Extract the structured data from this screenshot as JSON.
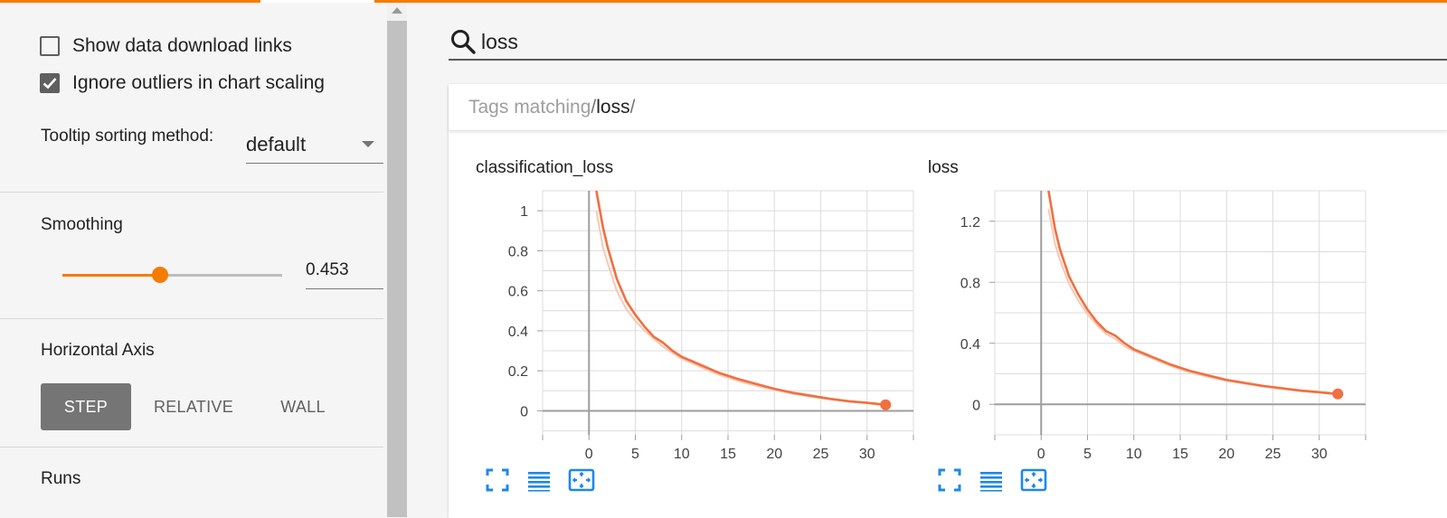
{
  "sidebar": {
    "show_download_links": {
      "label": "Show data download links",
      "checked": false
    },
    "ignore_outliers": {
      "label": "Ignore outliers in chart scaling",
      "checked": true
    },
    "tooltip_sorting": {
      "label": "Tooltip sorting method:",
      "value": "default"
    },
    "smoothing": {
      "title": "Smoothing",
      "value": 0.453,
      "display": "0.453"
    },
    "horizontal_axis": {
      "title": "Horizontal Axis",
      "options": [
        "STEP",
        "RELATIVE",
        "WALL"
      ],
      "selected": "STEP"
    },
    "runs_title": "Runs"
  },
  "search": {
    "query": "loss",
    "icon": "search-icon"
  },
  "tag_group": {
    "prefix": "Tags matching ",
    "slash": "/",
    "query": "loss"
  },
  "colors": {
    "accent": "#f57c00",
    "series": "#f07040",
    "series_raw": "#f9c8b5"
  },
  "chart_data": [
    {
      "type": "line",
      "title": "classification_loss",
      "xlabel": "",
      "ylabel": "",
      "xlim": [
        -5,
        35
      ],
      "ylim": [
        -0.12,
        1.1
      ],
      "xticks": [
        0,
        5,
        10,
        15,
        20,
        25,
        30
      ],
      "yticks": [
        0,
        0.2,
        0.4,
        0.6,
        0.8,
        1
      ],
      "ytick_labels": [
        "0",
        "0.2",
        "0.4",
        "0.6",
        "0.8",
        "1"
      ],
      "grid": true,
      "series": [
        {
          "kind": "smoothed",
          "x": [
            0.8,
            1.5,
            2,
            3,
            4,
            5,
            6,
            7,
            8,
            9,
            10,
            12,
            14,
            16,
            18,
            20,
            22,
            24,
            26,
            28,
            30,
            32
          ],
          "y": [
            1.1,
            0.92,
            0.82,
            0.66,
            0.55,
            0.48,
            0.42,
            0.37,
            0.34,
            0.3,
            0.27,
            0.23,
            0.19,
            0.16,
            0.135,
            0.11,
            0.09,
            0.075,
            0.06,
            0.048,
            0.04,
            0.03
          ]
        },
        {
          "kind": "raw",
          "x": [
            0.8,
            1.5,
            2,
            3,
            4,
            5,
            6,
            7,
            8,
            9,
            10,
            12,
            14,
            16,
            18,
            20,
            22,
            24,
            26,
            28,
            30,
            32
          ],
          "y": [
            1.0,
            0.82,
            0.74,
            0.6,
            0.51,
            0.45,
            0.4,
            0.36,
            0.32,
            0.29,
            0.26,
            0.22,
            0.18,
            0.15,
            0.125,
            0.105,
            0.085,
            0.07,
            0.058,
            0.046,
            0.038,
            0.028
          ]
        }
      ],
      "last_point": {
        "x": 32,
        "y": 0.03
      }
    },
    {
      "type": "line",
      "title": "loss",
      "xlabel": "",
      "ylabel": "",
      "xlim": [
        -5,
        35
      ],
      "ylim": [
        -0.2,
        1.4
      ],
      "xticks": [
        0,
        5,
        10,
        15,
        20,
        25,
        30
      ],
      "yticks": [
        0,
        0.4,
        0.8,
        1.2
      ],
      "ytick_labels": [
        "0",
        "0.4",
        "0.8",
        "1.2"
      ],
      "grid": true,
      "series": [
        {
          "kind": "smoothed",
          "x": [
            0.8,
            1.5,
            2,
            3,
            4,
            5,
            6,
            7,
            8,
            9,
            10,
            12,
            14,
            16,
            18,
            20,
            22,
            24,
            26,
            28,
            30,
            32
          ],
          "y": [
            1.4,
            1.15,
            1.02,
            0.84,
            0.72,
            0.62,
            0.54,
            0.48,
            0.45,
            0.4,
            0.36,
            0.31,
            0.26,
            0.22,
            0.19,
            0.16,
            0.14,
            0.12,
            0.105,
            0.09,
            0.08,
            0.068
          ]
        },
        {
          "kind": "raw",
          "x": [
            0.8,
            1.5,
            2,
            3,
            4,
            5,
            6,
            7,
            8,
            9,
            10,
            12,
            14,
            16,
            18,
            20,
            22,
            24,
            26,
            28,
            30,
            32
          ],
          "y": [
            1.28,
            1.05,
            0.95,
            0.79,
            0.68,
            0.59,
            0.52,
            0.46,
            0.43,
            0.38,
            0.35,
            0.3,
            0.25,
            0.21,
            0.18,
            0.155,
            0.135,
            0.115,
            0.1,
            0.086,
            0.076,
            0.065
          ]
        }
      ],
      "last_point": {
        "x": 32,
        "y": 0.068
      }
    }
  ],
  "chart_tools": [
    "fullscreen-icon",
    "toggle-log-icon",
    "fit-domain-icon"
  ]
}
